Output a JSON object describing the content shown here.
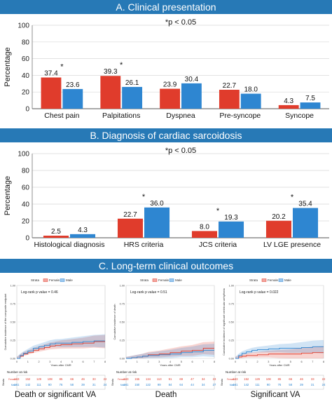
{
  "panels": {
    "a_title": "A. Clinical presentation",
    "b_title": "B. Diagnosis of cardiac sarcoidosis",
    "c_title": "C. Long-term clinical outcomes"
  },
  "colors": {
    "female": "#e03c2c",
    "male": "#2e86d1",
    "banner": "#2779b6"
  },
  "chart_data": [
    {
      "type": "bar",
      "annotation": "*p < 0.05",
      "ylabel": "Percentage",
      "ylim": [
        0,
        100
      ],
      "yticks": [
        "0",
        "20",
        "40",
        "60",
        "80",
        "100"
      ],
      "categories": [
        "Chest pain",
        "Palpitations",
        "Dyspnea",
        "Pre-syncope",
        "Syncope"
      ],
      "series": [
        {
          "values": [
            37.4,
            39.3,
            23.9,
            22.7,
            4.3
          ],
          "labels": [
            "37.4",
            "39.3",
            "23.9",
            "22.7",
            "4.3"
          ]
        },
        {
          "values": [
            23.6,
            26.1,
            30.4,
            18.0,
            7.5
          ],
          "labels": [
            "23.6",
            "26.1",
            "30.4",
            "18.0",
            "7.5"
          ]
        }
      ],
      "significant": [
        true,
        true,
        false,
        false,
        false
      ],
      "star": "*",
      "grid": true
    },
    {
      "type": "bar",
      "annotation": "*p < 0.05",
      "ylabel": "Percentage",
      "ylim": [
        0,
        100
      ],
      "yticks": [
        "0",
        "20",
        "40",
        "60",
        "80",
        "100"
      ],
      "categories": [
        "Histological diagnosis",
        "HRS criteria",
        "JCS criteria",
        "LV LGE presence"
      ],
      "series": [
        {
          "values": [
            2.5,
            22.7,
            8.0,
            20.2
          ],
          "labels": [
            "2.5",
            "22.7",
            "8.0",
            "20.2"
          ]
        },
        {
          "values": [
            4.3,
            36.0,
            19.3,
            35.4
          ],
          "labels": [
            "4.3",
            "36.0",
            "19.3",
            "35.4"
          ]
        }
      ],
      "significant": [
        false,
        true,
        true,
        true
      ],
      "star": "*",
      "grid": true
    }
  ],
  "km": {
    "strata_label": "Strata",
    "female_label": "Female",
    "male_label": "Male",
    "xlabel": "Years after CMR",
    "risk_title": "Number at risk",
    "risk_strata": "Strata",
    "xticks": [
      "0",
      "1",
      "2",
      "3",
      "4",
      "5",
      "6",
      "7",
      "8"
    ],
    "yticks": [
      "0.00",
      "0.25",
      "0.50",
      "0.75",
      "1.00"
    ],
    "plots": [
      {
        "pvalue": "Log-rank p value = 0.46",
        "ylabel": "Cumulative incidence of the composite endpoint",
        "caption": "Death or significant VA",
        "female_curve": [
          [
            0,
            0
          ],
          [
            0.3,
            0.03
          ],
          [
            0.6,
            0.06
          ],
          [
            1,
            0.08
          ],
          [
            1.5,
            0.11
          ],
          [
            2,
            0.13
          ],
          [
            2.5,
            0.15
          ],
          [
            3,
            0.17
          ],
          [
            3.5,
            0.18
          ],
          [
            4,
            0.19
          ],
          [
            5,
            0.2
          ],
          [
            6,
            0.21
          ],
          [
            7,
            0.23
          ],
          [
            8,
            0.23
          ]
        ],
        "male_curve": [
          [
            0,
            0
          ],
          [
            0.3,
            0.04
          ],
          [
            0.6,
            0.07
          ],
          [
            1,
            0.1
          ],
          [
            1.5,
            0.14
          ],
          [
            2,
            0.16
          ],
          [
            2.5,
            0.18
          ],
          [
            3,
            0.2
          ],
          [
            3.5,
            0.21
          ],
          [
            4,
            0.21
          ],
          [
            5,
            0.22
          ],
          [
            6,
            0.23
          ],
          [
            7,
            0.24
          ],
          [
            8,
            0.24
          ]
        ],
        "risk_female": [
          "163",
          "152",
          "129",
          "108",
          "85",
          "66",
          "46",
          "33",
          "22"
        ],
        "risk_male": [
          "161",
          "142",
          "111",
          "90",
          "76",
          "58",
          "39",
          "31",
          "24"
        ]
      },
      {
        "pvalue": "Log-rank p value = 0.51",
        "ylabel": "Cumulative incidence of death",
        "caption": "Death",
        "female_curve": [
          [
            0,
            0
          ],
          [
            0.5,
            0.01
          ],
          [
            1,
            0.02
          ],
          [
            1.5,
            0.03
          ],
          [
            2,
            0.05
          ],
          [
            3,
            0.06
          ],
          [
            4,
            0.08
          ],
          [
            5,
            0.1
          ],
          [
            6,
            0.11
          ],
          [
            7,
            0.14
          ],
          [
            8,
            0.14
          ]
        ],
        "male_curve": [
          [
            0,
            0
          ],
          [
            0.5,
            0.01
          ],
          [
            1,
            0.02
          ],
          [
            1.5,
            0.03
          ],
          [
            2,
            0.04
          ],
          [
            3,
            0.05
          ],
          [
            4,
            0.06
          ],
          [
            5,
            0.08
          ],
          [
            6,
            0.09
          ],
          [
            7,
            0.11
          ],
          [
            8,
            0.11
          ]
        ],
        "risk_female": [
          "163",
          "155",
          "134",
          "113",
          "91",
          "69",
          "47",
          "34",
          "23"
        ],
        "risk_male": [
          "161",
          "150",
          "122",
          "99",
          "84",
          "64",
          "44",
          "34",
          "27"
        ]
      },
      {
        "pvalue": "Log-rank p value = 0.022",
        "ylabel": "Cumulative incidence of significant ventricular arrhythmia",
        "caption": "Significant VA",
        "female_curve": [
          [
            0,
            0
          ],
          [
            0.3,
            0.02
          ],
          [
            0.6,
            0.03
          ],
          [
            1,
            0.04
          ],
          [
            2,
            0.05
          ],
          [
            3,
            0.06
          ],
          [
            4,
            0.06
          ],
          [
            5,
            0.06
          ],
          [
            6,
            0.07
          ],
          [
            7,
            0.08
          ],
          [
            8,
            0.08
          ]
        ],
        "male_curve": [
          [
            0,
            0
          ],
          [
            0.3,
            0.04
          ],
          [
            0.6,
            0.07
          ],
          [
            1,
            0.09
          ],
          [
            1.5,
            0.11
          ],
          [
            2,
            0.12
          ],
          [
            3,
            0.13
          ],
          [
            4,
            0.14
          ],
          [
            5,
            0.14
          ],
          [
            6,
            0.15
          ],
          [
            7,
            0.16
          ],
          [
            8,
            0.16
          ]
        ],
        "risk_female": [
          "163",
          "152",
          "129",
          "108",
          "85",
          "66",
          "46",
          "33",
          "22"
        ],
        "risk_male": [
          "161",
          "142",
          "111",
          "90",
          "76",
          "58",
          "39",
          "31",
          "24"
        ]
      }
    ]
  }
}
